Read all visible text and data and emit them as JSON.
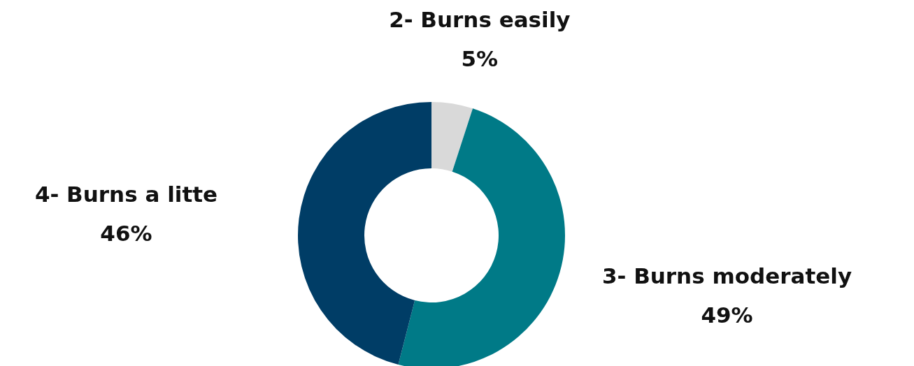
{
  "chart_data": {
    "type": "donut",
    "categories": [
      "2- Burns easily",
      "3- Burns moderately",
      "4- Burns a litte"
    ],
    "values": [
      5,
      49,
      46
    ],
    "value_labels": [
      "5%",
      "49%",
      "46%"
    ],
    "colors": [
      "#d9d9d9",
      "#007a87",
      "#003d66"
    ]
  }
}
